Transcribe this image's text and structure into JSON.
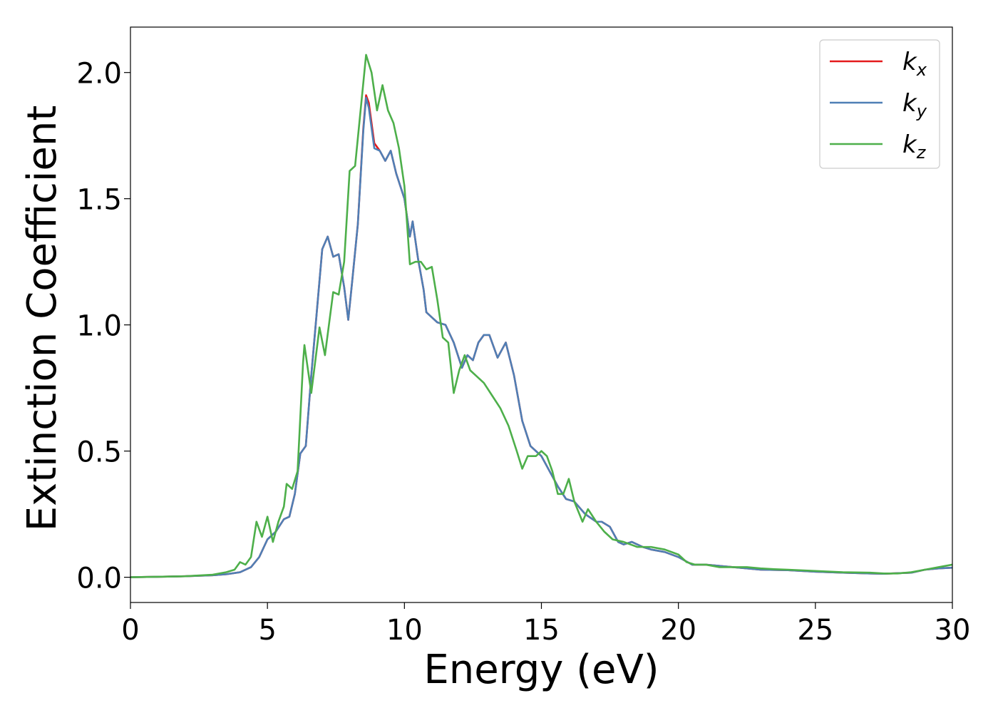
{
  "chart_data": {
    "type": "line",
    "title": "",
    "xlabel": "Energy (eV)",
    "ylabel": "Extinction Coefficient",
    "xlim": [
      0,
      30
    ],
    "ylim": [
      -0.1,
      2.18
    ],
    "xticks": [
      0,
      5,
      10,
      15,
      20,
      25,
      30
    ],
    "xtick_labels": [
      "0",
      "5",
      "10",
      "15",
      "20",
      "25",
      "30"
    ],
    "yticks": [
      0.0,
      0.5,
      1.0,
      1.5,
      2.0
    ],
    "ytick_labels": [
      "0.0",
      "0.5",
      "1.0",
      "1.5",
      "2.0"
    ],
    "grid": false,
    "legend_position": "top-right",
    "series": [
      {
        "name": "k_x",
        "legend_main": "k",
        "legend_sub": "x",
        "color": "#e41a1c",
        "points": [
          [
            0,
            0
          ],
          [
            1,
            0.002
          ],
          [
            2,
            0.004
          ],
          [
            3,
            0.008
          ],
          [
            3.5,
            0.012
          ],
          [
            4,
            0.02
          ],
          [
            4.4,
            0.04
          ],
          [
            4.7,
            0.08
          ],
          [
            5,
            0.15
          ],
          [
            5.3,
            0.18
          ],
          [
            5.6,
            0.23
          ],
          [
            5.8,
            0.24
          ],
          [
            6,
            0.33
          ],
          [
            6.2,
            0.49
          ],
          [
            6.4,
            0.52
          ],
          [
            6.6,
            0.8
          ],
          [
            6.8,
            1.05
          ],
          [
            7,
            1.3
          ],
          [
            7.2,
            1.35
          ],
          [
            7.4,
            1.27
          ],
          [
            7.6,
            1.28
          ],
          [
            7.8,
            1.15
          ],
          [
            7.95,
            1.02
          ],
          [
            8.1,
            1.18
          ],
          [
            8.3,
            1.4
          ],
          [
            8.5,
            1.78
          ],
          [
            8.6,
            1.91
          ],
          [
            8.7,
            1.88
          ],
          [
            8.9,
            1.72
          ],
          [
            9.1,
            1.69
          ],
          [
            9.3,
            1.65
          ],
          [
            9.5,
            1.69
          ],
          [
            9.7,
            1.6
          ],
          [
            10,
            1.5
          ],
          [
            10.2,
            1.35
          ],
          [
            10.3,
            1.41
          ],
          [
            10.5,
            1.26
          ],
          [
            10.7,
            1.14
          ],
          [
            10.8,
            1.05
          ],
          [
            11,
            1.03
          ],
          [
            11.2,
            1.01
          ],
          [
            11.5,
            1.0
          ],
          [
            11.8,
            0.93
          ],
          [
            12.1,
            0.83
          ],
          [
            12.3,
            0.88
          ],
          [
            12.5,
            0.86
          ],
          [
            12.7,
            0.93
          ],
          [
            12.9,
            0.96
          ],
          [
            13.1,
            0.96
          ],
          [
            13.4,
            0.87
          ],
          [
            13.7,
            0.93
          ],
          [
            14,
            0.8
          ],
          [
            14.3,
            0.62
          ],
          [
            14.6,
            0.52
          ],
          [
            14.8,
            0.5
          ],
          [
            15,
            0.48
          ],
          [
            15.3,
            0.42
          ],
          [
            15.6,
            0.36
          ],
          [
            15.9,
            0.31
          ],
          [
            16.2,
            0.3
          ],
          [
            16.6,
            0.25
          ],
          [
            17,
            0.22
          ],
          [
            17.2,
            0.22
          ],
          [
            17.5,
            0.2
          ],
          [
            17.8,
            0.14
          ],
          [
            18,
            0.13
          ],
          [
            18.3,
            0.14
          ],
          [
            18.7,
            0.12
          ],
          [
            19,
            0.11
          ],
          [
            19.5,
            0.1
          ],
          [
            20,
            0.08
          ],
          [
            20.5,
            0.05
          ],
          [
            21,
            0.05
          ],
          [
            21.5,
            0.045
          ],
          [
            22,
            0.04
          ],
          [
            23,
            0.03
          ],
          [
            24,
            0.028
          ],
          [
            25,
            0.022
          ],
          [
            26,
            0.018
          ],
          [
            27,
            0.015
          ],
          [
            27.5,
            0.014
          ],
          [
            28,
            0.016
          ],
          [
            28.5,
            0.018
          ],
          [
            29,
            0.03
          ],
          [
            29.5,
            0.035
          ],
          [
            30,
            0.038
          ]
        ]
      },
      {
        "name": "k_y",
        "legend_main": "k",
        "legend_sub": "y",
        "color": "#4f7fb5",
        "points": [
          [
            0,
            0
          ],
          [
            1,
            0.002
          ],
          [
            2,
            0.004
          ],
          [
            3,
            0.008
          ],
          [
            3.5,
            0.012
          ],
          [
            4,
            0.02
          ],
          [
            4.4,
            0.04
          ],
          [
            4.7,
            0.08
          ],
          [
            5,
            0.15
          ],
          [
            5.3,
            0.18
          ],
          [
            5.6,
            0.23
          ],
          [
            5.8,
            0.24
          ],
          [
            6,
            0.33
          ],
          [
            6.2,
            0.49
          ],
          [
            6.4,
            0.52
          ],
          [
            6.6,
            0.8
          ],
          [
            6.8,
            1.05
          ],
          [
            7,
            1.3
          ],
          [
            7.2,
            1.35
          ],
          [
            7.4,
            1.27
          ],
          [
            7.6,
            1.28
          ],
          [
            7.8,
            1.15
          ],
          [
            7.95,
            1.02
          ],
          [
            8.1,
            1.18
          ],
          [
            8.3,
            1.4
          ],
          [
            8.5,
            1.77
          ],
          [
            8.6,
            1.9
          ],
          [
            8.7,
            1.86
          ],
          [
            8.9,
            1.7
          ],
          [
            9.1,
            1.69
          ],
          [
            9.3,
            1.65
          ],
          [
            9.5,
            1.69
          ],
          [
            9.7,
            1.6
          ],
          [
            10,
            1.5
          ],
          [
            10.2,
            1.35
          ],
          [
            10.3,
            1.41
          ],
          [
            10.5,
            1.26
          ],
          [
            10.7,
            1.14
          ],
          [
            10.8,
            1.05
          ],
          [
            11,
            1.03
          ],
          [
            11.2,
            1.01
          ],
          [
            11.5,
            1.0
          ],
          [
            11.8,
            0.93
          ],
          [
            12.1,
            0.83
          ],
          [
            12.3,
            0.88
          ],
          [
            12.5,
            0.86
          ],
          [
            12.7,
            0.93
          ],
          [
            12.9,
            0.96
          ],
          [
            13.1,
            0.96
          ],
          [
            13.4,
            0.87
          ],
          [
            13.7,
            0.93
          ],
          [
            14,
            0.8
          ],
          [
            14.3,
            0.62
          ],
          [
            14.6,
            0.52
          ],
          [
            14.8,
            0.5
          ],
          [
            15,
            0.48
          ],
          [
            15.3,
            0.42
          ],
          [
            15.6,
            0.36
          ],
          [
            15.9,
            0.31
          ],
          [
            16.2,
            0.3
          ],
          [
            16.6,
            0.25
          ],
          [
            17,
            0.22
          ],
          [
            17.2,
            0.22
          ],
          [
            17.5,
            0.2
          ],
          [
            17.8,
            0.14
          ],
          [
            18,
            0.13
          ],
          [
            18.3,
            0.14
          ],
          [
            18.7,
            0.12
          ],
          [
            19,
            0.11
          ],
          [
            19.5,
            0.1
          ],
          [
            20,
            0.08
          ],
          [
            20.5,
            0.05
          ],
          [
            21,
            0.05
          ],
          [
            21.5,
            0.045
          ],
          [
            22,
            0.04
          ],
          [
            23,
            0.03
          ],
          [
            24,
            0.028
          ],
          [
            25,
            0.022
          ],
          [
            26,
            0.018
          ],
          [
            27,
            0.015
          ],
          [
            27.5,
            0.014
          ],
          [
            28,
            0.016
          ],
          [
            28.5,
            0.018
          ],
          [
            29,
            0.03
          ],
          [
            29.5,
            0.035
          ],
          [
            30,
            0.038
          ]
        ]
      },
      {
        "name": "k_z",
        "legend_main": "k",
        "legend_sub": "z",
        "color": "#4daf4a",
        "points": [
          [
            0,
            0
          ],
          [
            1,
            0.002
          ],
          [
            2,
            0.004
          ],
          [
            3,
            0.01
          ],
          [
            3.5,
            0.02
          ],
          [
            3.8,
            0.03
          ],
          [
            4,
            0.06
          ],
          [
            4.2,
            0.05
          ],
          [
            4.4,
            0.08
          ],
          [
            4.6,
            0.22
          ],
          [
            4.8,
            0.16
          ],
          [
            5,
            0.24
          ],
          [
            5.2,
            0.14
          ],
          [
            5.4,
            0.22
          ],
          [
            5.6,
            0.28
          ],
          [
            5.7,
            0.37
          ],
          [
            5.9,
            0.35
          ],
          [
            6.1,
            0.42
          ],
          [
            6.3,
            0.85
          ],
          [
            6.35,
            0.92
          ],
          [
            6.6,
            0.73
          ],
          [
            6.9,
            0.99
          ],
          [
            7.1,
            0.88
          ],
          [
            7.4,
            1.13
          ],
          [
            7.6,
            1.12
          ],
          [
            7.8,
            1.25
          ],
          [
            8,
            1.61
          ],
          [
            8.2,
            1.63
          ],
          [
            8.4,
            1.85
          ],
          [
            8.6,
            2.07
          ],
          [
            8.8,
            2.0
          ],
          [
            9,
            1.85
          ],
          [
            9.2,
            1.95
          ],
          [
            9.4,
            1.85
          ],
          [
            9.6,
            1.8
          ],
          [
            9.8,
            1.7
          ],
          [
            10,
            1.55
          ],
          [
            10.2,
            1.24
          ],
          [
            10.4,
            1.25
          ],
          [
            10.6,
            1.25
          ],
          [
            10.8,
            1.22
          ],
          [
            11,
            1.23
          ],
          [
            11.2,
            1.1
          ],
          [
            11.4,
            0.95
          ],
          [
            11.6,
            0.93
          ],
          [
            11.8,
            0.73
          ],
          [
            12,
            0.82
          ],
          [
            12.2,
            0.88
          ],
          [
            12.4,
            0.82
          ],
          [
            12.6,
            0.8
          ],
          [
            12.9,
            0.77
          ],
          [
            13.2,
            0.72
          ],
          [
            13.5,
            0.67
          ],
          [
            13.8,
            0.6
          ],
          [
            14.1,
            0.5
          ],
          [
            14.3,
            0.43
          ],
          [
            14.5,
            0.48
          ],
          [
            14.8,
            0.48
          ],
          [
            15,
            0.5
          ],
          [
            15.2,
            0.48
          ],
          [
            15.4,
            0.42
          ],
          [
            15.6,
            0.33
          ],
          [
            15.8,
            0.33
          ],
          [
            16,
            0.39
          ],
          [
            16.2,
            0.3
          ],
          [
            16.5,
            0.22
          ],
          [
            16.7,
            0.27
          ],
          [
            17,
            0.22
          ],
          [
            17.3,
            0.18
          ],
          [
            17.6,
            0.15
          ],
          [
            18,
            0.14
          ],
          [
            18.5,
            0.12
          ],
          [
            19,
            0.12
          ],
          [
            19.5,
            0.11
          ],
          [
            20,
            0.09
          ],
          [
            20.3,
            0.06
          ],
          [
            20.6,
            0.05
          ],
          [
            21,
            0.05
          ],
          [
            21.5,
            0.04
          ],
          [
            22,
            0.04
          ],
          [
            22.5,
            0.04
          ],
          [
            23,
            0.035
          ],
          [
            23.5,
            0.032
          ],
          [
            24,
            0.03
          ],
          [
            25,
            0.025
          ],
          [
            26,
            0.02
          ],
          [
            27,
            0.018
          ],
          [
            27.5,
            0.015
          ],
          [
            28,
            0.015
          ],
          [
            28.5,
            0.02
          ],
          [
            29,
            0.03
          ],
          [
            29.5,
            0.04
          ],
          [
            30,
            0.05
          ]
        ]
      }
    ]
  }
}
